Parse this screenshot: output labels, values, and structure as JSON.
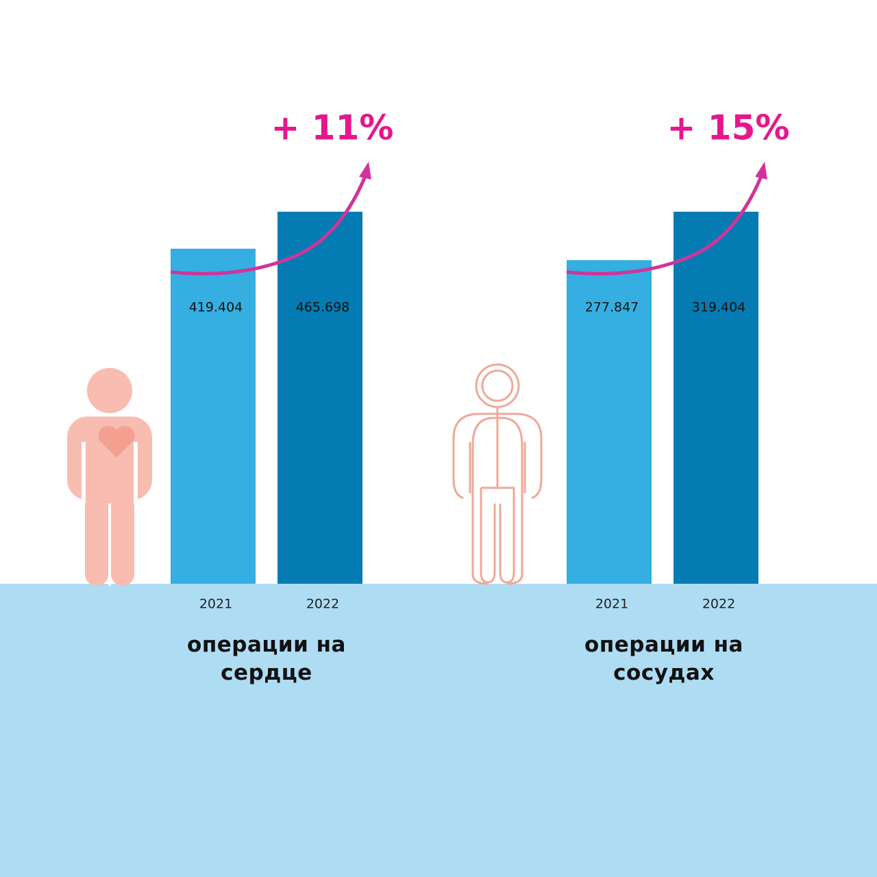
{
  "chart_data": [
    {
      "type": "bar",
      "title": "операции на сердце",
      "annotation": "+ 11%",
      "categories": [
        "2021",
        "2022"
      ],
      "series": [
        {
          "values": [
            419404,
            465698
          ],
          "value_labels": [
            "419.404",
            "465.698"
          ],
          "colors": [
            "#35aee2",
            "#057bb3"
          ]
        }
      ]
    },
    {
      "type": "bar",
      "title": "операции на сосудах",
      "annotation": "+ 15%",
      "categories": [
        "2021",
        "2022"
      ],
      "series": [
        {
          "values": [
            277847,
            319404
          ],
          "value_labels": [
            "277.847",
            "319.404"
          ],
          "colors": [
            "#35aee2",
            "#057bb3"
          ]
        }
      ]
    }
  ]
}
